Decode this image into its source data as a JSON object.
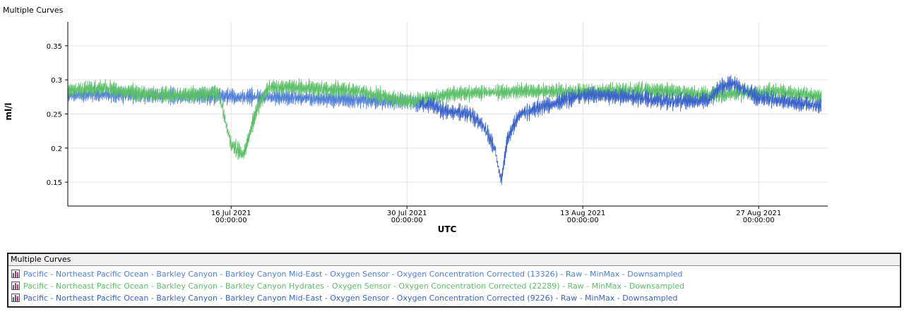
{
  "chart_data": {
    "type": "line",
    "title": "Multiple Curves",
    "xlabel": "UTC",
    "ylabel": "ml/l",
    "x_range": [
      "2021-07-03T00:00:00Z",
      "2021-09-01T12:00:00Z"
    ],
    "ylim": [
      0.115,
      0.385
    ],
    "yticks": [
      0.15,
      0.2,
      0.25,
      0.3,
      0.35
    ],
    "ytick_labels": [
      "0.15",
      "0.2",
      "0.25",
      "0.3",
      "0.35"
    ],
    "xticks": [
      {
        "date": "2021-07-16T00:00:00Z",
        "line1": "16 Jul 2021",
        "line2": "00:00:00"
      },
      {
        "date": "2021-07-30T00:00:00Z",
        "line1": "30 Jul 2021",
        "line2": "00:00:00"
      },
      {
        "date": "2021-08-13T00:00:00Z",
        "line1": "13 Aug 2021",
        "line2": "00:00:00"
      },
      {
        "date": "2021-08-27T00:00:00Z",
        "line1": "27 Aug 2021",
        "line2": "00:00:00"
      }
    ],
    "grid": true,
    "legend_placement": "bottom",
    "series": [
      {
        "name": "Pacific - Northeast Pacific Ocean - Barkley Canyon - Barkley Canyon Mid-East - Oxygen Sensor - Oxygen Concentration Corrected (13326) - Raw - MinMax - Downsampled",
        "color": "#4f7fd6",
        "x": [
          "2021-07-03",
          "2021-07-06",
          "2021-07-09",
          "2021-07-12",
          "2021-07-15",
          "2021-07-18",
          "2021-07-21",
          "2021-07-24",
          "2021-07-27",
          "2021-07-30",
          "2021-07-31"
        ],
        "y": [
          0.278,
          0.279,
          0.277,
          0.276,
          0.276,
          0.275,
          0.274,
          0.272,
          0.27,
          0.268,
          0.264
        ]
      },
      {
        "name": "Pacific - Northeast Pacific Ocean - Barkley Canyon - Barkley Canyon Hydrates - Oxygen Sensor - Oxygen Concentration Corrected (22289) - Raw - MinMax - Downsampled",
        "color": "#5cbf68",
        "x": [
          "2021-07-03",
          "2021-07-06",
          "2021-07-09",
          "2021-07-12",
          "2021-07-15",
          "2021-07-16",
          "2021-07-17",
          "2021-07-18",
          "2021-07-19",
          "2021-07-22",
          "2021-07-26",
          "2021-07-30",
          "2021-08-03",
          "2021-08-08",
          "2021-08-13",
          "2021-08-18",
          "2021-08-23",
          "2021-08-28",
          "2021-09-01"
        ],
        "y": [
          0.285,
          0.288,
          0.279,
          0.277,
          0.282,
          0.205,
          0.19,
          0.255,
          0.29,
          0.288,
          0.284,
          0.268,
          0.28,
          0.283,
          0.282,
          0.285,
          0.278,
          0.283,
          0.276
        ]
      },
      {
        "name": "Pacific - Northeast Pacific Ocean - Barkley Canyon - Barkley Canyon Mid-East - Oxygen Sensor - Oxygen Concentration Corrected (9226) - Raw - MinMax - Downsampled",
        "color": "#3a63c9",
        "x": [
          "2021-07-31",
          "2021-08-01",
          "2021-08-02",
          "2021-08-04",
          "2021-08-05",
          "2021-08-06",
          "2021-08-06T12",
          "2021-08-07",
          "2021-08-08",
          "2021-08-10",
          "2021-08-13",
          "2021-08-16",
          "2021-08-20",
          "2021-08-23",
          "2021-08-24",
          "2021-08-25",
          "2021-08-27",
          "2021-08-30",
          "2021-09-01"
        ],
        "y": [
          0.265,
          0.262,
          0.255,
          0.25,
          0.235,
          0.2,
          0.15,
          0.215,
          0.25,
          0.262,
          0.278,
          0.276,
          0.268,
          0.27,
          0.29,
          0.295,
          0.274,
          0.266,
          0.262
        ]
      }
    ]
  },
  "legend": {
    "header": "Multiple Curves"
  }
}
